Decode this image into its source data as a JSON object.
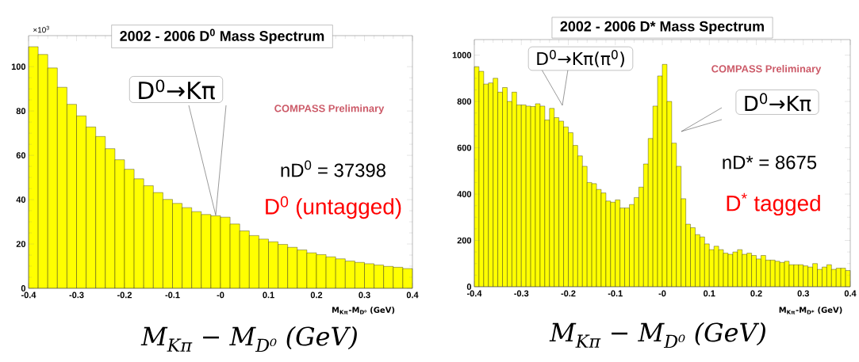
{
  "chart_data": [
    {
      "type": "histogram",
      "title": "2002 - 2006 D$^{0}$ Mass Spectrum",
      "xlabel": "M$_{Kπ}$-M$_{D⁰}$ (GeV)",
      "color": "#ffff00",
      "bins": [
        -0.4,
        -0.38,
        -0.36,
        -0.34,
        -0.32,
        -0.3,
        -0.28,
        -0.26,
        -0.24,
        -0.22,
        -0.2,
        -0.18,
        -0.16,
        -0.14,
        -0.12,
        -0.1,
        -0.08,
        -0.06,
        -0.04,
        -0.02,
        0,
        0.02,
        0.04,
        0.06,
        0.08,
        0.1,
        0.12,
        0.14,
        0.16,
        0.18,
        0.2,
        0.22,
        0.24,
        0.26,
        0.28,
        0.3,
        0.32,
        0.34,
        0.36,
        0.38,
        0.4
      ],
      "values": [
        109,
        105.5,
        99.4,
        90.7,
        83,
        77.8,
        72.8,
        68.5,
        63,
        58,
        53.7,
        49.4,
        46.3,
        43.2,
        40.1,
        38.3,
        36.4,
        34.6,
        33.3,
        32.7,
        32.1,
        29,
        25.9,
        23.8,
        22.2,
        21,
        19.8,
        18.5,
        17.3,
        16,
        15.2,
        14.2,
        13.3,
        12.3,
        11.7,
        11.1,
        10.5,
        9.9,
        9.5,
        8.9
      ],
      "xlim": [
        -0.4,
        0.4
      ],
      "ylim": [
        0,
        114
      ],
      "xticks": [
        -0.4,
        -0.3,
        -0.2,
        -0.1,
        {
          "value": 0,
          "label": "-0"
        },
        0.1,
        0.2,
        0.3,
        0.4
      ],
      "yticks": [
        0,
        20,
        40,
        60,
        80,
        100
      ],
      "annotations": [
        {
          "text": "D$^{0}$→Kπ",
          "x": -0.01,
          "y": 33
        },
        "COMPASS Preliminary",
        "nD$^{0}$ = 37398",
        "D$^{0}$ (untagged)",
        "×10$^{3}$",
        "M$_{Kπ}$ − M$_{D⁰}$ (GeV)"
      ]
    },
    {
      "type": "histogram",
      "title": "2002 - 2006 D* Mass Spectrum",
      "xlabel": "M$_{Kπ}$-M$_{D*}$ (GeV)",
      "color": "#ffff00",
      "bins": [
        -0.4,
        -0.39,
        -0.38,
        -0.37,
        -0.36,
        -0.35,
        -0.34,
        -0.33,
        -0.32,
        -0.31,
        -0.3,
        -0.29,
        -0.28,
        -0.27,
        -0.26,
        -0.25,
        -0.24,
        -0.23,
        -0.22,
        -0.21,
        -0.2,
        -0.19,
        -0.18,
        -0.17,
        -0.16,
        -0.15,
        -0.14,
        -0.13,
        -0.12,
        -0.11,
        -0.1,
        -0.09,
        -0.08,
        -0.07,
        -0.06,
        -0.05,
        -0.04,
        -0.03,
        -0.02,
        -0.01,
        0,
        0.01,
        0.02,
        0.03,
        0.04,
        0.05,
        0.06,
        0.07,
        0.08,
        0.09,
        0.1,
        0.11,
        0.12,
        0.13,
        0.14,
        0.15,
        0.16,
        0.17,
        0.18,
        0.19,
        0.2,
        0.21,
        0.22,
        0.23,
        0.24,
        0.25,
        0.26,
        0.27,
        0.28,
        0.29,
        0.3,
        0.31,
        0.32,
        0.33,
        0.34,
        0.35,
        0.36,
        0.37,
        0.38,
        0.39,
        0.4
      ],
      "values": [
        950,
        930,
        875,
        880,
        900,
        840,
        860,
        800,
        840,
        785,
        785,
        780,
        778,
        790,
        780,
        720,
        770,
        730,
        715,
        690,
        665,
        610,
        565,
        520,
        450,
        445,
        420,
        405,
        370,
        365,
        375,
        340,
        340,
        355,
        385,
        430,
        530,
        640,
        780,
        910,
        960,
        800,
        620,
        520,
        380,
        270,
        255,
        225,
        215,
        185,
        160,
        175,
        160,
        145,
        140,
        150,
        160,
        140,
        145,
        135,
        120,
        135,
        115,
        115,
        110,
        105,
        110,
        95,
        95,
        95,
        90,
        85,
        100,
        75,
        85,
        95,
        75,
        80,
        80,
        70
      ],
      "xlim": [
        -0.4,
        0.4
      ],
      "ylim": [
        0,
        1067
      ],
      "xticks": [
        -0.4,
        -0.3,
        -0.2,
        -0.1,
        {
          "value": 0,
          "label": "-0"
        },
        0.1,
        0.2,
        0.3,
        0.4
      ],
      "yticks": [
        0,
        200,
        400,
        600,
        800,
        1000
      ],
      "annotations": [
        "D$^{0}$→Kπ(π$^{0}$)",
        "D$^{0}$→Kπ",
        "COMPASS Preliminary",
        "nD* = 8675",
        "D$^{*}$ tagged",
        "M$_{Kπ}$ − M$_{D⁰}$ (GeV)"
      ]
    }
  ]
}
